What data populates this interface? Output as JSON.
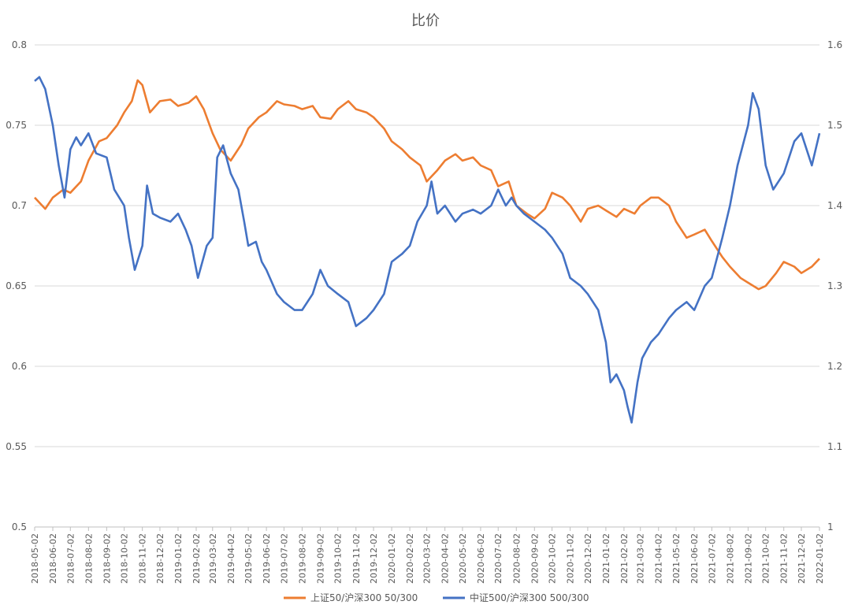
{
  "chart_data": {
    "type": "line",
    "title": "比价",
    "x_tick_labels": [
      "2018-05-02",
      "2018-06-02",
      "2018-07-02",
      "2018-08-02",
      "2018-09-02",
      "2018-10-02",
      "2018-11-02",
      "2018-12-02",
      "2019-01-02",
      "2019-02-02",
      "2019-03-02",
      "2019-04-02",
      "2019-05-02",
      "2019-06-02",
      "2019-07-02",
      "2019-08-02",
      "2019-09-02",
      "2019-10-02",
      "2019-11-02",
      "2019-12-02",
      "2020-01-02",
      "2020-02-02",
      "2020-03-02",
      "2020-04-02",
      "2020-05-02",
      "2020-06-02",
      "2020-07-02",
      "2020-08-02",
      "2020-09-02",
      "2020-10-02",
      "2020-11-02",
      "2020-12-02",
      "2021-01-02",
      "2021-02-02",
      "2021-03-02",
      "2021-04-02",
      "2021-05-02",
      "2021-06-02",
      "2021-07-02",
      "2021-08-02",
      "2021-09-02",
      "2021-10-02",
      "2021-11-02",
      "2021-12-02",
      "2022-01-02"
    ],
    "y_left": {
      "min": 0.5,
      "max": 0.8,
      "step": 0.05,
      "tick_labels": [
        "0.5",
        "0.55",
        "0.6",
        "0.65",
        "0.7",
        "0.75",
        "0.8"
      ]
    },
    "y_right": {
      "min": 1.0,
      "max": 1.6,
      "step": 0.1,
      "tick_labels": [
        "1",
        "1.1",
        "1.2",
        "1.3",
        "1.4",
        "1.5",
        "1.6"
      ]
    },
    "grid": "horizontal",
    "legend_position": "bottom",
    "series": [
      {
        "name": "上证50/沪深300 50/300",
        "axis": "left",
        "color": "#ED7D31",
        "x": [
          "2018-05-02",
          "2018-05-20",
          "2018-06-02",
          "2018-06-20",
          "2018-07-02",
          "2018-07-20",
          "2018-08-02",
          "2018-08-20",
          "2018-09-02",
          "2018-09-20",
          "2018-10-02",
          "2018-10-15",
          "2018-10-25",
          "2018-11-02",
          "2018-11-15",
          "2018-12-02",
          "2018-12-20",
          "2019-01-02",
          "2019-01-20",
          "2019-02-02",
          "2019-02-15",
          "2019-03-02",
          "2019-03-15",
          "2019-04-02",
          "2019-04-20",
          "2019-05-02",
          "2019-05-20",
          "2019-06-02",
          "2019-06-20",
          "2019-07-02",
          "2019-07-20",
          "2019-08-02",
          "2019-08-20",
          "2019-09-02",
          "2019-09-20",
          "2019-10-02",
          "2019-10-20",
          "2019-11-02",
          "2019-11-20",
          "2019-12-02",
          "2019-12-20",
          "2020-01-02",
          "2020-01-20",
          "2020-02-02",
          "2020-02-20",
          "2020-03-02",
          "2020-03-20",
          "2020-04-02",
          "2020-04-20",
          "2020-05-02",
          "2020-05-20",
          "2020-06-02",
          "2020-06-20",
          "2020-07-02",
          "2020-07-20",
          "2020-08-02",
          "2020-08-20",
          "2020-09-02",
          "2020-09-20",
          "2020-10-02",
          "2020-10-20",
          "2020-11-02",
          "2020-11-20",
          "2020-12-02",
          "2020-12-20",
          "2021-01-02",
          "2021-01-20",
          "2021-02-02",
          "2021-02-20",
          "2021-03-02",
          "2021-03-20",
          "2021-04-02",
          "2021-04-20",
          "2021-05-02",
          "2021-05-20",
          "2021-06-02",
          "2021-06-20",
          "2021-07-02",
          "2021-07-20",
          "2021-08-02",
          "2021-08-20",
          "2021-09-02",
          "2021-09-20",
          "2021-10-02",
          "2021-10-20",
          "2021-11-02",
          "2021-11-20",
          "2021-12-02",
          "2021-12-20",
          "2022-01-02"
        ],
        "values": [
          0.705,
          0.698,
          0.705,
          0.71,
          0.708,
          0.715,
          0.728,
          0.74,
          0.742,
          0.75,
          0.758,
          0.765,
          0.778,
          0.775,
          0.758,
          0.765,
          0.766,
          0.762,
          0.764,
          0.768,
          0.76,
          0.745,
          0.735,
          0.728,
          0.738,
          0.748,
          0.755,
          0.758,
          0.765,
          0.763,
          0.762,
          0.76,
          0.762,
          0.755,
          0.754,
          0.76,
          0.765,
          0.76,
          0.758,
          0.755,
          0.748,
          0.74,
          0.735,
          0.73,
          0.725,
          0.715,
          0.722,
          0.728,
          0.732,
          0.728,
          0.73,
          0.725,
          0.722,
          0.712,
          0.715,
          0.7,
          0.695,
          0.692,
          0.698,
          0.708,
          0.705,
          0.7,
          0.69,
          0.698,
          0.7,
          0.697,
          0.693,
          0.698,
          0.695,
          0.7,
          0.705,
          0.705,
          0.7,
          0.69,
          0.68,
          0.682,
          0.685,
          0.678,
          0.668,
          0.662,
          0.655,
          0.652,
          0.648,
          0.65,
          0.658,
          0.665,
          0.662,
          0.658,
          0.662,
          0.667
        ]
      },
      {
        "name": "中证500/沪深300 500/300",
        "axis": "right",
        "color": "#4472C4",
        "x": [
          "2018-05-02",
          "2018-05-10",
          "2018-05-20",
          "2018-06-02",
          "2018-06-12",
          "2018-06-22",
          "2018-07-02",
          "2018-07-12",
          "2018-07-20",
          "2018-08-02",
          "2018-08-15",
          "2018-09-02",
          "2018-09-15",
          "2018-10-02",
          "2018-10-10",
          "2018-10-20",
          "2018-11-02",
          "2018-11-10",
          "2018-11-20",
          "2018-12-02",
          "2018-12-20",
          "2019-01-02",
          "2019-01-15",
          "2019-01-25",
          "2019-02-05",
          "2019-02-20",
          "2019-03-02",
          "2019-03-10",
          "2019-03-20",
          "2019-04-02",
          "2019-04-15",
          "2019-04-25",
          "2019-05-02",
          "2019-05-15",
          "2019-05-25",
          "2019-06-02",
          "2019-06-20",
          "2019-07-02",
          "2019-07-20",
          "2019-08-02",
          "2019-08-20",
          "2019-09-02",
          "2019-09-15",
          "2019-10-02",
          "2019-10-20",
          "2019-11-02",
          "2019-11-20",
          "2019-12-02",
          "2019-12-20",
          "2020-01-02",
          "2020-01-20",
          "2020-02-02",
          "2020-02-15",
          "2020-03-02",
          "2020-03-10",
          "2020-03-20",
          "2020-04-02",
          "2020-04-20",
          "2020-05-02",
          "2020-05-20",
          "2020-06-02",
          "2020-06-20",
          "2020-07-02",
          "2020-07-15",
          "2020-07-25",
          "2020-08-02",
          "2020-08-15",
          "2020-09-02",
          "2020-09-20",
          "2020-10-02",
          "2020-10-20",
          "2020-11-02",
          "2020-11-20",
          "2020-12-02",
          "2020-12-20",
          "2021-01-02",
          "2021-01-10",
          "2021-01-20",
          "2021-02-02",
          "2021-02-08",
          "2021-02-15",
          "2021-02-25",
          "2021-03-05",
          "2021-03-20",
          "2021-04-02",
          "2021-04-20",
          "2021-05-02",
          "2021-05-20",
          "2021-06-02",
          "2021-06-20",
          "2021-07-02",
          "2021-07-20",
          "2021-08-02",
          "2021-08-15",
          "2021-09-02",
          "2021-09-10",
          "2021-09-20",
          "2021-10-02",
          "2021-10-15",
          "2021-11-02",
          "2021-11-20",
          "2021-12-02",
          "2021-12-20",
          "2022-01-02"
        ],
        "values": [
          1.555,
          1.56,
          1.545,
          1.5,
          1.45,
          1.41,
          1.47,
          1.485,
          1.475,
          1.49,
          1.465,
          1.46,
          1.42,
          1.4,
          1.36,
          1.32,
          1.35,
          1.425,
          1.39,
          1.385,
          1.38,
          1.39,
          1.37,
          1.35,
          1.31,
          1.35,
          1.36,
          1.46,
          1.475,
          1.44,
          1.42,
          1.38,
          1.35,
          1.355,
          1.33,
          1.32,
          1.29,
          1.28,
          1.27,
          1.27,
          1.29,
          1.32,
          1.3,
          1.29,
          1.28,
          1.25,
          1.26,
          1.27,
          1.29,
          1.33,
          1.34,
          1.35,
          1.38,
          1.4,
          1.43,
          1.39,
          1.4,
          1.38,
          1.39,
          1.395,
          1.39,
          1.4,
          1.42,
          1.4,
          1.41,
          1.4,
          1.39,
          1.38,
          1.37,
          1.36,
          1.34,
          1.31,
          1.3,
          1.29,
          1.27,
          1.23,
          1.18,
          1.19,
          1.17,
          1.15,
          1.13,
          1.18,
          1.21,
          1.23,
          1.24,
          1.26,
          1.27,
          1.28,
          1.27,
          1.3,
          1.31,
          1.36,
          1.4,
          1.45,
          1.5,
          1.54,
          1.52,
          1.45,
          1.42,
          1.44,
          1.48,
          1.49,
          1.45,
          1.49
        ]
      }
    ]
  }
}
